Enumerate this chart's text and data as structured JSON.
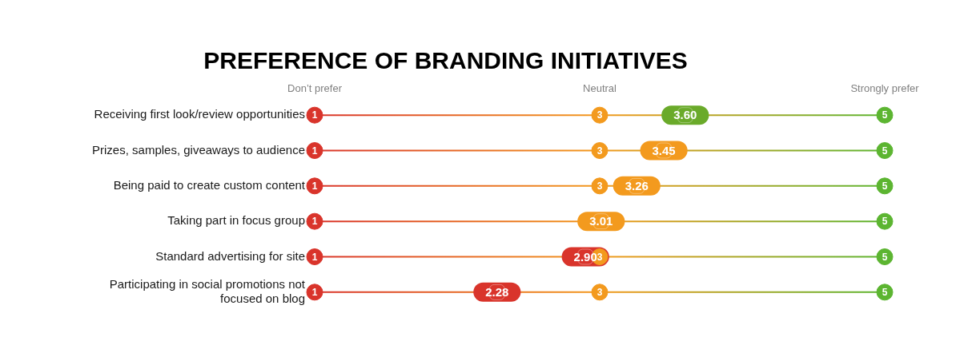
{
  "chart_data": {
    "type": "scatter",
    "orientation": "horizontal",
    "title": "PREFERENCE OF BRANDING INITIATIVES",
    "categories": [
      "Receiving first look/review opportunities",
      "Prizes, samples, giveaways to audience",
      "Being paid to create custom content",
      "Taking part in focus group",
      "Standard advertising for site",
      "Participating in social promotions not focused on blog"
    ],
    "series": [
      {
        "marker": "square",
        "colors": [
          "#6aaa2a",
          "#f39a1e",
          "#f39a1e",
          "#f39a1e",
          "#d9342b",
          "#d9342b"
        ],
        "values": [
          3.6,
          3.45,
          3.26,
          3.01,
          2.9,
          2.28
        ],
        "value_labels": [
          "3.60",
          "3.45",
          "3.26",
          "3.01",
          "2.90",
          "2.28"
        ]
      },
      {
        "marker": "circle",
        "color": "#d9342b",
        "values": [
          1,
          1,
          1,
          1,
          1,
          1
        ],
        "value_labels": [
          "1",
          "1",
          "1",
          "1",
          "1",
          "1"
        ]
      },
      {
        "marker": "circle",
        "color": "#f39a1e",
        "values": [
          3,
          3,
          3,
          null,
          3,
          3
        ],
        "value_labels": [
          "3",
          "3",
          "3",
          null,
          "3",
          "3"
        ]
      },
      {
        "marker": "circle",
        "color": "#5cb531",
        "values": [
          5,
          5,
          5,
          5,
          5,
          5
        ],
        "value_labels": [
          "5",
          "5",
          "5",
          "5",
          "5",
          "5"
        ]
      }
    ],
    "xlim": [
      1,
      5
    ],
    "xticks": [
      1,
      3,
      5
    ],
    "legend": false,
    "annotations": [
      "Don’t prefer",
      "Neutral",
      "Strongly prefer"
    ]
  }
}
